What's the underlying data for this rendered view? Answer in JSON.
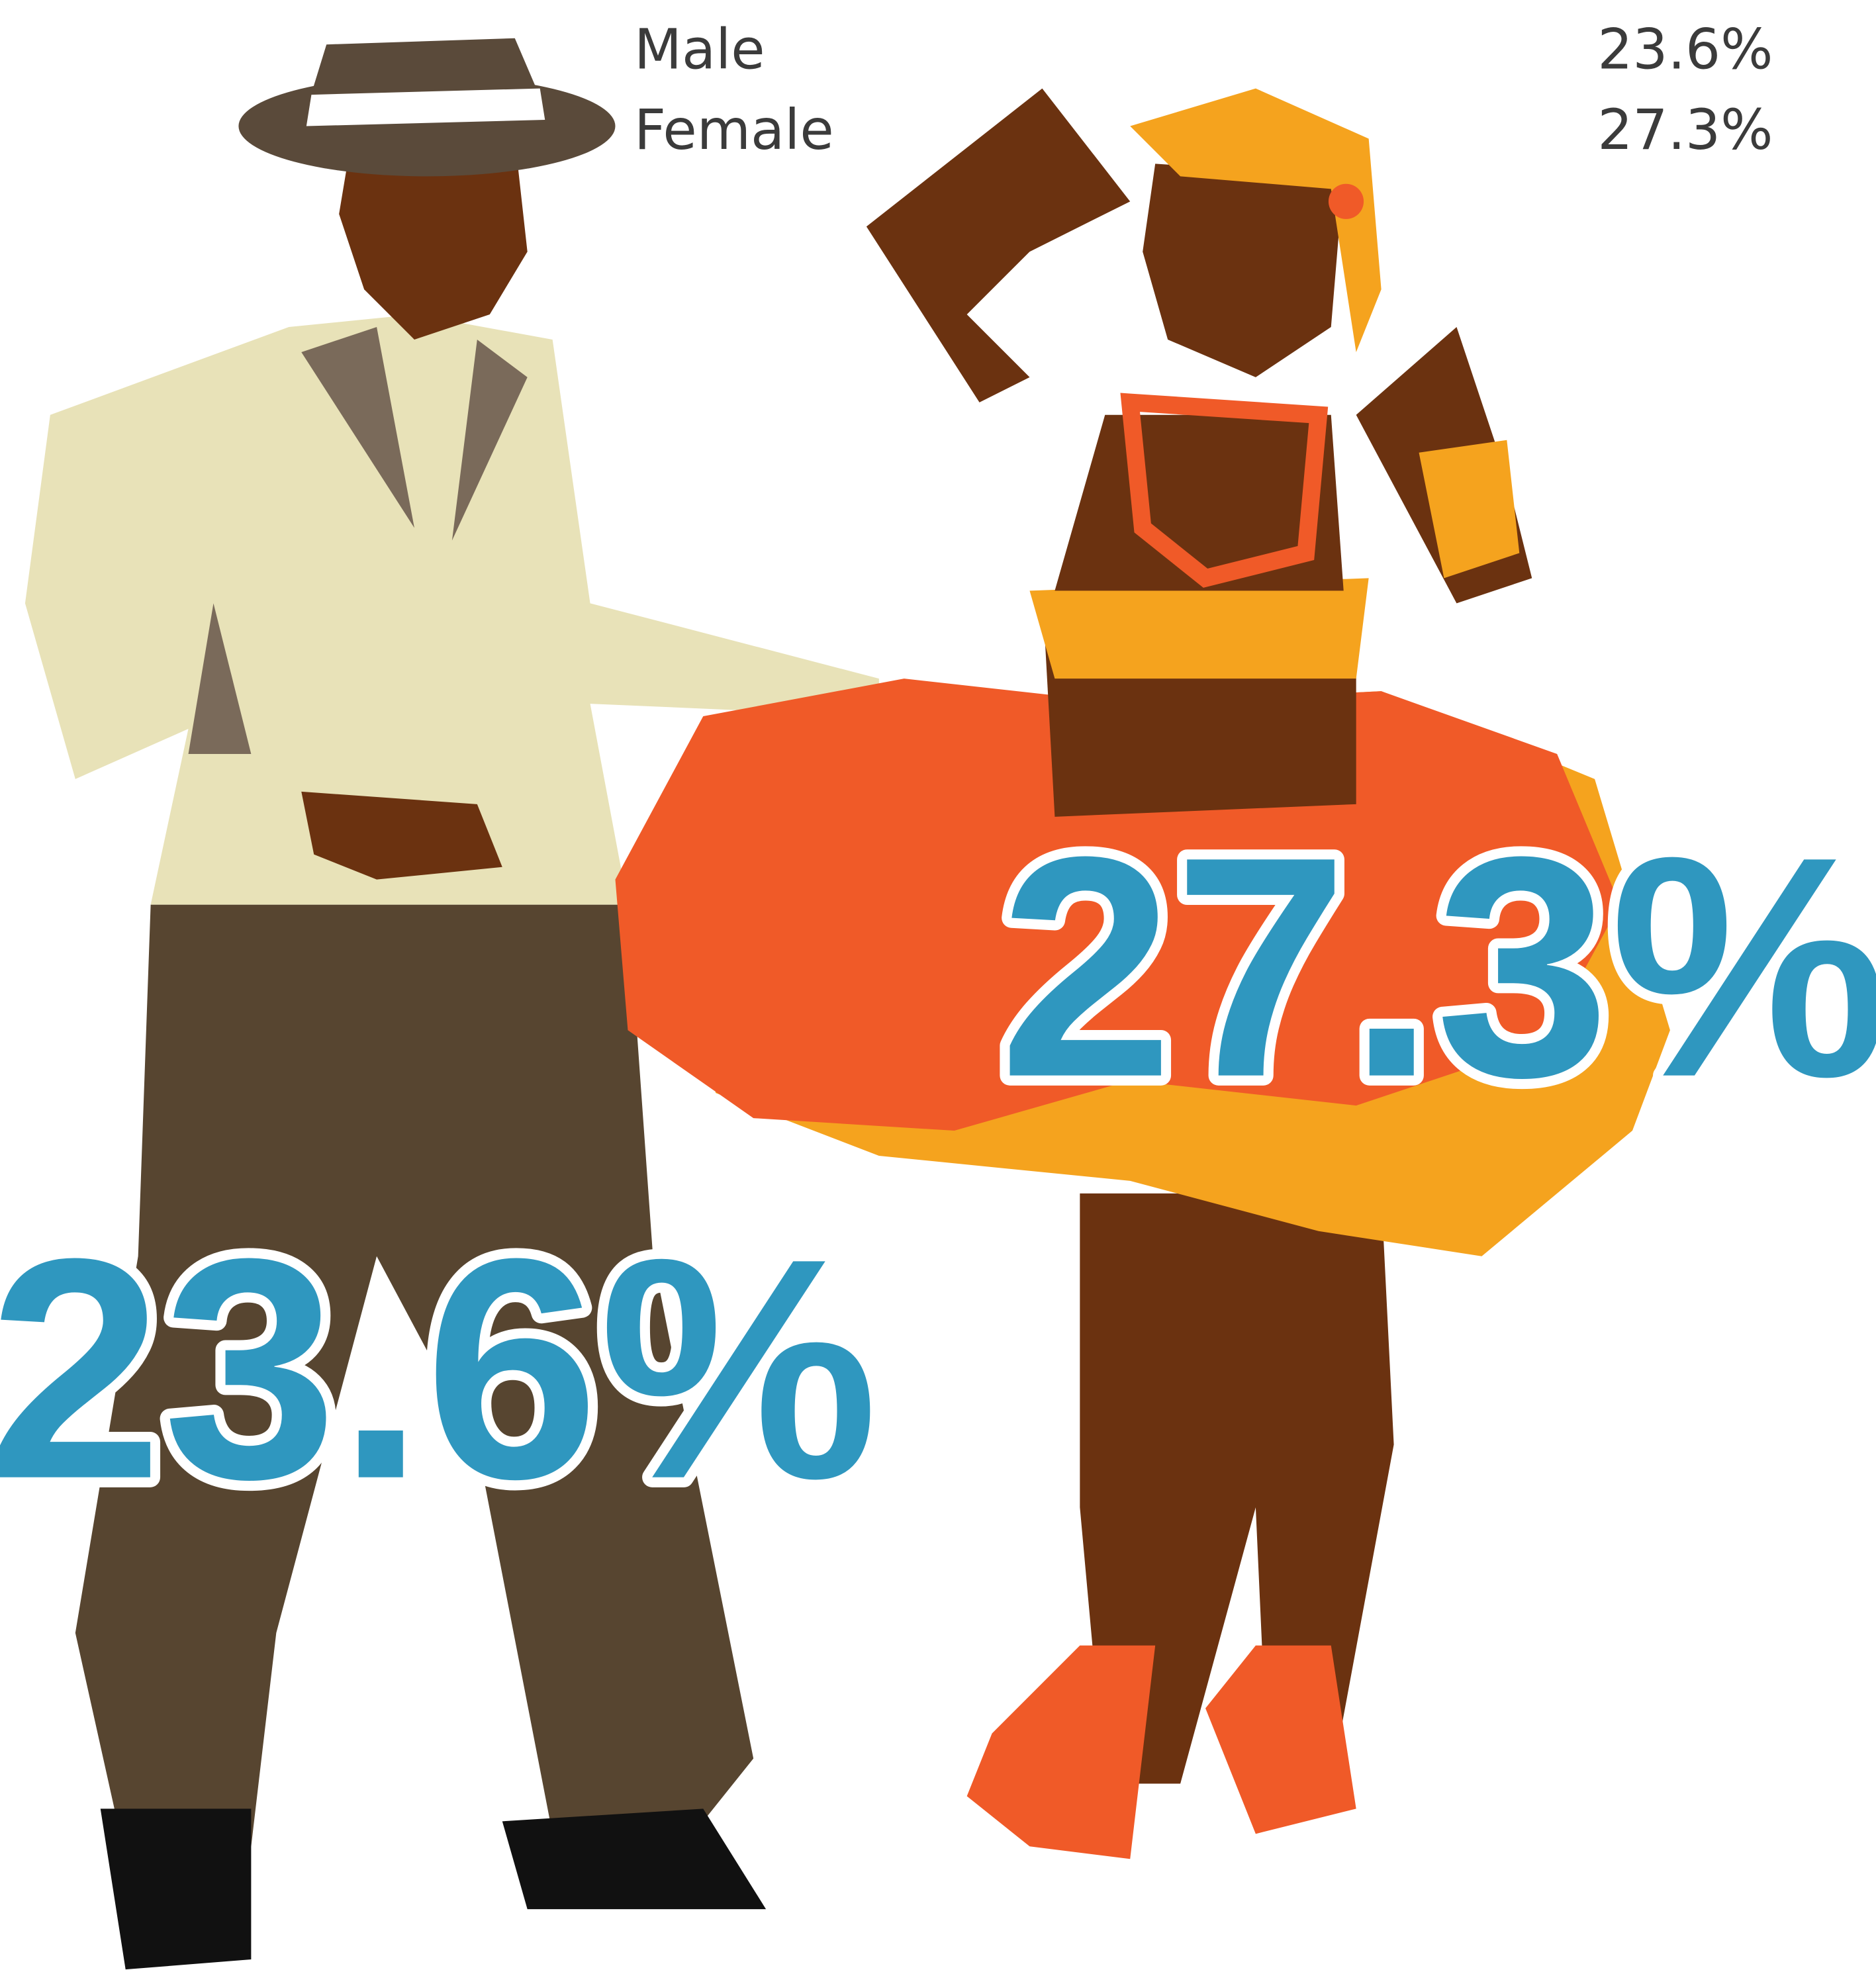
{
  "table": {
    "rows": [
      [
        "Male",
        "23.6%"
      ],
      [
        "Female",
        "27.3%"
      ]
    ]
  }
}
